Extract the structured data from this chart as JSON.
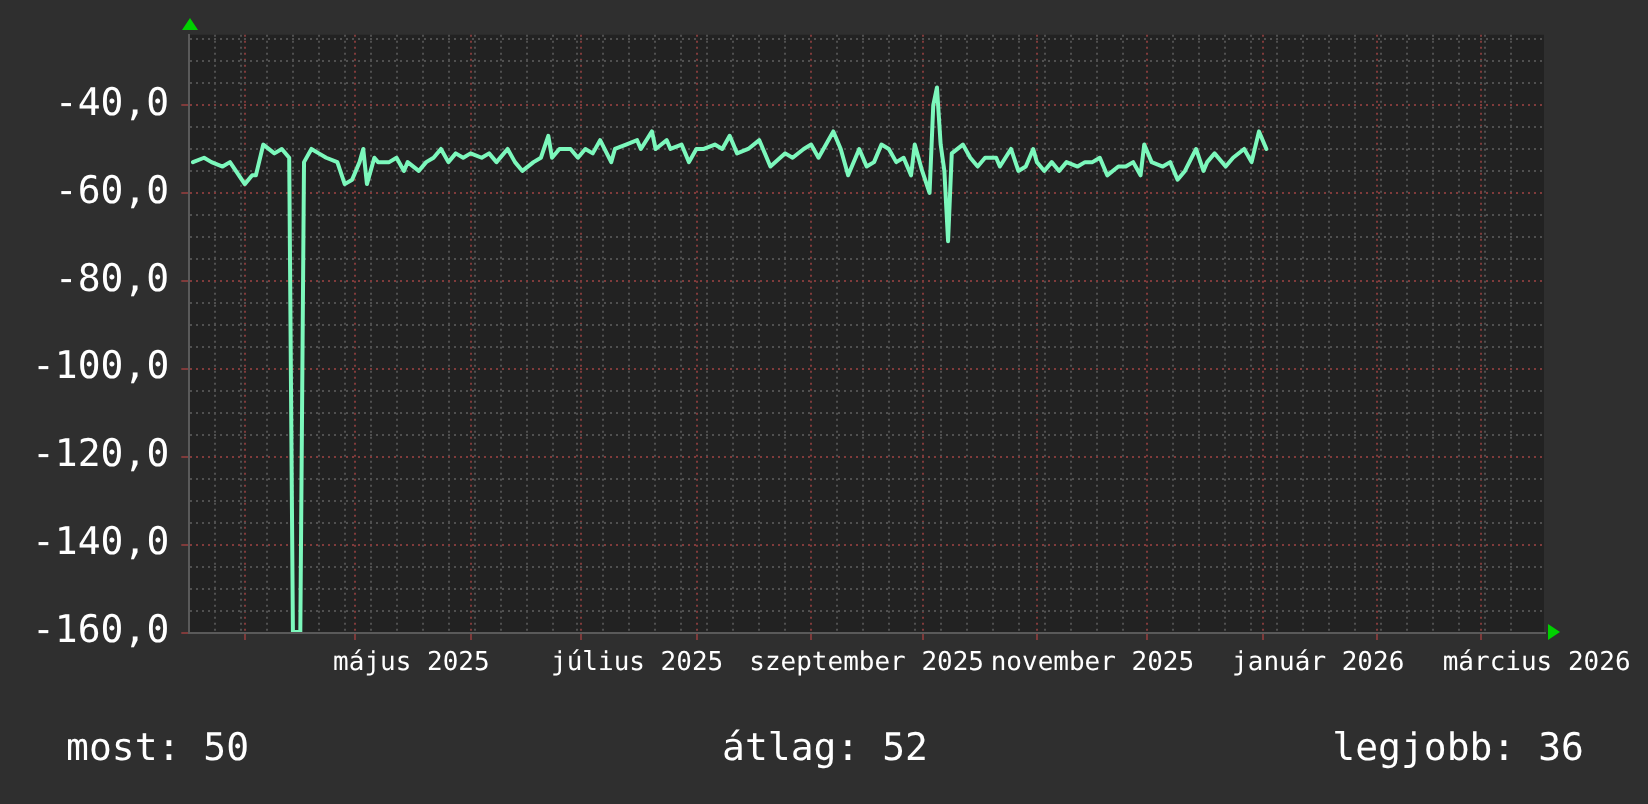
{
  "chart_data": {
    "type": "line",
    "x": [
      "2025-03-18",
      "2025-03-21",
      "2025-03-23",
      "2025-03-26",
      "2025-03-28",
      "2025-04-01",
      "2025-04-03",
      "2025-04-04",
      "2025-04-06",
      "2025-04-09",
      "2025-04-11",
      "2025-04-13",
      "2025-04-14",
      "2025-04-16",
      "2025-04-17",
      "2025-04-19",
      "2025-04-21",
      "2025-04-23",
      "2025-04-26",
      "2025-04-28",
      "2025-04-30",
      "2025-05-02",
      "2025-05-03",
      "2025-05-04",
      "2025-05-06",
      "2025-05-07",
      "2025-05-10",
      "2025-05-12",
      "2025-05-14",
      "2025-05-15",
      "2025-05-18",
      "2025-05-20",
      "2025-05-22",
      "2025-05-24",
      "2025-05-26",
      "2025-05-28",
      "2025-05-30",
      "2025-06-01",
      "2025-06-04",
      "2025-06-06",
      "2025-06-08",
      "2025-06-11",
      "2025-06-13",
      "2025-06-15",
      "2025-06-18",
      "2025-06-20",
      "2025-06-22",
      "2025-06-23",
      "2025-06-25",
      "2025-06-28",
      "2025-06-30",
      "2025-07-02",
      "2025-07-04",
      "2025-07-06",
      "2025-07-09",
      "2025-07-10",
      "2025-07-13",
      "2025-07-16",
      "2025-07-17",
      "2025-07-20",
      "2025-07-21",
      "2025-07-24",
      "2025-07-25",
      "2025-07-28",
      "2025-07-30",
      "2025-08-01",
      "2025-08-03",
      "2025-08-06",
      "2025-08-08",
      "2025-08-10",
      "2025-08-12",
      "2025-08-15",
      "2025-08-18",
      "2025-08-19",
      "2025-08-21",
      "2025-08-25",
      "2025-08-27",
      "2025-08-30",
      "2025-09-01",
      "2025-09-03",
      "2025-09-07",
      "2025-09-09",
      "2025-09-11",
      "2025-09-14",
      "2025-09-16",
      "2025-09-18",
      "2025-09-20",
      "2025-09-22",
      "2025-09-24",
      "2025-09-26",
      "2025-09-28",
      "2025-09-29",
      "2025-10-01",
      "2025-10-03",
      "2025-10-04",
      "2025-10-05",
      "2025-10-06",
      "2025-10-07",
      "2025-10-08",
      "2025-10-09",
      "2025-10-12",
      "2025-10-14",
      "2025-10-16",
      "2025-10-18",
      "2025-10-21",
      "2025-10-22",
      "2025-10-25",
      "2025-10-27",
      "2025-10-29",
      "2025-10-31",
      "2025-11-01",
      "2025-11-03",
      "2025-11-05",
      "2025-11-07",
      "2025-11-09",
      "2025-11-12",
      "2025-11-14",
      "2025-11-16",
      "2025-11-18",
      "2025-11-20",
      "2025-11-23",
      "2025-11-25",
      "2025-11-27",
      "2025-11-29",
      "2025-11-30",
      "2025-12-02",
      "2025-12-05",
      "2025-12-07",
      "2025-12-09",
      "2025-12-11",
      "2025-12-14",
      "2025-12-16",
      "2025-12-17",
      "2025-12-19",
      "2025-12-22",
      "2025-12-24",
      "2025-12-27",
      "2025-12-29",
      "2025-12-31",
      "2026-01-01",
      "2026-01-02"
    ],
    "series": [
      {
        "color": "#7cf8bc",
        "values": [
          -53,
          -52,
          -53,
          -54,
          -53,
          -58,
          -56,
          -56,
          -49,
          -51,
          -50,
          -52,
          -160,
          -160,
          -53,
          -50,
          -51,
          -52,
          -53,
          -58,
          -57,
          -53,
          -50,
          -58,
          -52,
          -53,
          -53,
          -52,
          -55,
          -53,
          -55,
          -53,
          -52,
          -50,
          -53,
          -51,
          -52,
          -51,
          -52,
          -51,
          -53,
          -50,
          -53,
          -55,
          -53,
          -52,
          -47,
          -52,
          -50,
          -50,
          -52,
          -50,
          -51,
          -48,
          -53,
          -50,
          -49,
          -48,
          -50,
          -46,
          -50,
          -48,
          -50,
          -49,
          -53,
          -50,
          -50,
          -49,
          -50,
          -47,
          -51,
          -50,
          -48,
          -50,
          -54,
          -51,
          -52,
          -50,
          -49,
          -52,
          -46,
          -50,
          -56,
          -50,
          -54,
          -53,
          -49,
          -50,
          -53,
          -52,
          -56,
          -49,
          -55,
          -60,
          -40,
          -36,
          -49,
          -55,
          -71,
          -51,
          -49,
          -52,
          -54,
          -52,
          -52,
          -54,
          -50,
          -55,
          -54,
          -50,
          -53,
          -55,
          -53,
          -55,
          -53,
          -54,
          -53,
          -53,
          -52,
          -56,
          -54,
          -54,
          -53,
          -56,
          -49,
          -53,
          -54,
          -53,
          -57,
          -55,
          -50,
          -55,
          -53,
          -51,
          -54,
          -52,
          -50,
          -53,
          -46,
          -48,
          -50
        ]
      }
    ],
    "xlim": [
      "2025-03-17",
      "2026-03-18"
    ],
    "xticks": [
      {
        "value": "2025-03-24",
        "label": null
      },
      {
        "value": "2025-03-31",
        "label": null
      },
      {
        "value": "2025-04-01",
        "label": null
      },
      {
        "value": "2025-04-07",
        "label": null
      },
      {
        "value": "2025-04-14",
        "label": null
      },
      {
        "value": "2025-04-21",
        "label": null
      },
      {
        "value": "2025-04-28",
        "label": null
      },
      {
        "value": "2025-05-01",
        "label": null
      },
      {
        "value": "2025-05-05",
        "label": null
      },
      {
        "value": "2025-05-12",
        "label": null
      },
      {
        "value": "2025-05-16",
        "label": "május 2025"
      },
      {
        "value": "2025-05-19",
        "label": null
      },
      {
        "value": "2025-05-26",
        "label": null
      },
      {
        "value": "2025-06-01",
        "label": null
      },
      {
        "value": "2025-06-02",
        "label": null
      },
      {
        "value": "2025-06-09",
        "label": null
      },
      {
        "value": "2025-06-16",
        "label": null
      },
      {
        "value": "2025-06-23",
        "label": null
      },
      {
        "value": "2025-06-30",
        "label": null
      },
      {
        "value": "2025-07-01",
        "label": null
      },
      {
        "value": "2025-07-07",
        "label": null
      },
      {
        "value": "2025-07-14",
        "label": null
      },
      {
        "value": "2025-07-16",
        "label": "július 2025"
      },
      {
        "value": "2025-07-21",
        "label": null
      },
      {
        "value": "2025-07-28",
        "label": null
      },
      {
        "value": "2025-08-01",
        "label": null
      },
      {
        "value": "2025-08-04",
        "label": null
      },
      {
        "value": "2025-08-11",
        "label": null
      },
      {
        "value": "2025-08-18",
        "label": null
      },
      {
        "value": "2025-08-25",
        "label": null
      },
      {
        "value": "2025-09-01",
        "label": null
      },
      {
        "value": "2025-09-08",
        "label": null
      },
      {
        "value": "2025-09-15",
        "label": null
      },
      {
        "value": "2025-09-16",
        "label": "szeptember 2025"
      },
      {
        "value": "2025-09-22",
        "label": null
      },
      {
        "value": "2025-09-29",
        "label": null
      },
      {
        "value": "2025-10-01",
        "label": null
      },
      {
        "value": "2025-10-06",
        "label": null
      },
      {
        "value": "2025-10-13",
        "label": null
      },
      {
        "value": "2025-10-20",
        "label": null
      },
      {
        "value": "2025-10-27",
        "label": null
      },
      {
        "value": "2025-11-01",
        "label": null
      },
      {
        "value": "2025-11-03",
        "label": null
      },
      {
        "value": "2025-11-10",
        "label": null
      },
      {
        "value": "2025-11-16",
        "label": "november 2025"
      },
      {
        "value": "2025-11-17",
        "label": null
      },
      {
        "value": "2025-11-24",
        "label": null
      },
      {
        "value": "2025-12-01",
        "label": null
      },
      {
        "value": "2025-12-08",
        "label": null
      },
      {
        "value": "2025-12-15",
        "label": null
      },
      {
        "value": "2025-12-22",
        "label": null
      },
      {
        "value": "2025-12-29",
        "label": null
      },
      {
        "value": "2026-01-01",
        "label": null
      },
      {
        "value": "2026-01-05",
        "label": null
      },
      {
        "value": "2026-01-12",
        "label": null
      },
      {
        "value": "2026-01-16",
        "label": "január 2026"
      },
      {
        "value": "2026-01-19",
        "label": null
      },
      {
        "value": "2026-01-26",
        "label": null
      },
      {
        "value": "2026-02-01",
        "label": null
      },
      {
        "value": "2026-02-02",
        "label": null
      },
      {
        "value": "2026-02-09",
        "label": null
      },
      {
        "value": "2026-02-16",
        "label": null
      },
      {
        "value": "2026-02-23",
        "label": null
      },
      {
        "value": "2026-03-01",
        "label": null
      },
      {
        "value": "2026-03-02",
        "label": null
      },
      {
        "value": "2026-03-09",
        "label": null
      },
      {
        "value": "2026-03-16",
        "label": "március 2026"
      }
    ],
    "ylim": [
      -160,
      -24
    ],
    "yticks": [
      {
        "value": -160,
        "label": "-160,0"
      },
      {
        "value": -155,
        "label": null
      },
      {
        "value": -150,
        "label": null
      },
      {
        "value": -145,
        "label": null
      },
      {
        "value": -140,
        "label": "-140,0"
      },
      {
        "value": -135,
        "label": null
      },
      {
        "value": -130,
        "label": null
      },
      {
        "value": -125,
        "label": null
      },
      {
        "value": -120,
        "label": "-120,0"
      },
      {
        "value": -115,
        "label": null
      },
      {
        "value": -110,
        "label": null
      },
      {
        "value": -105,
        "label": null
      },
      {
        "value": -100,
        "label": "-100,0"
      },
      {
        "value": -95,
        "label": null
      },
      {
        "value": -90,
        "label": null
      },
      {
        "value": -85,
        "label": null
      },
      {
        "value": -80,
        "label": "-80,0"
      },
      {
        "value": -75,
        "label": null
      },
      {
        "value": -70,
        "label": null
      },
      {
        "value": -65,
        "label": null
      },
      {
        "value": -60,
        "label": "-60,0"
      },
      {
        "value": -55,
        "label": null
      },
      {
        "value": -50,
        "label": null
      },
      {
        "value": -45,
        "label": null
      },
      {
        "value": -40,
        "label": "-40,0"
      },
      {
        "value": -35,
        "label": null
      },
      {
        "value": -30,
        "label": null
      },
      {
        "value": -25,
        "label": null
      }
    ],
    "grid": true,
    "annotations": [
      "most: 50",
      "átlag: 52",
      "legjobb: 36"
    ]
  }
}
